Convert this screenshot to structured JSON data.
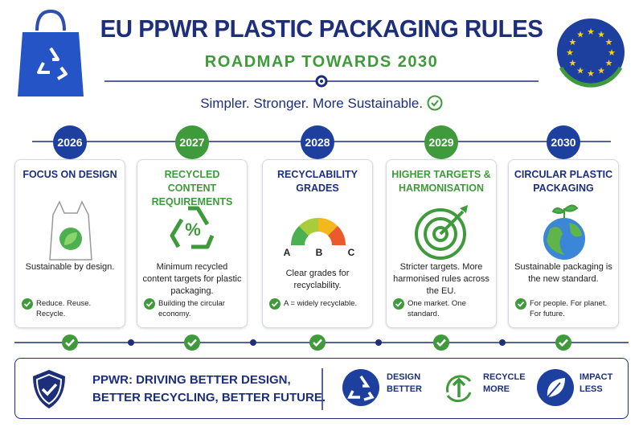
{
  "header": {
    "title": "EU PPWR PLASTIC PACKAGING RULES",
    "subtitle": "ROADMAP TOWARDS 2030",
    "tagline": "Simpler. Stronger. More Sustainable."
  },
  "timeline": {
    "steps": [
      {
        "year": "2026",
        "title": "FOCUS ON DESIGN",
        "description": "Sustainable by design.",
        "note": "Reduce. Reuse. Recycle."
      },
      {
        "year": "2027",
        "title": "RECYCLED CONTENT REQUIREMENTS",
        "description": "Minimum recycled content targets for plastic packaging.",
        "note": "Building the circular economy."
      },
      {
        "year": "2028",
        "title": "RECYCLABILITY GRADES",
        "grades": [
          "A",
          "B",
          "C"
        ],
        "description": "Clear grades for recyclability.",
        "note": "A = widely recyclable."
      },
      {
        "year": "2029",
        "title": "HIGHER TARGETS & HARMONISATION",
        "description": "Stricter targets. More harmonised rules across the EU.",
        "note": "One market. One standard."
      },
      {
        "year": "2030",
        "title": "CIRCULAR PLASTIC PACKAGING",
        "description": "Sustainable packaging is the new standard.",
        "note": "For people. For planet. For future."
      }
    ]
  },
  "footer": {
    "message": "PPWR: DRIVING BETTER DESIGN, BETTER RECYCLING, BETTER FUTURE.",
    "badges": [
      {
        "label": "DESIGN BETTER"
      },
      {
        "label": "RECYCLE MORE"
      },
      {
        "label": "IMPACT LESS"
      }
    ]
  }
}
